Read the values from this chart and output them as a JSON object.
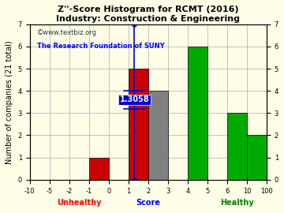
{
  "title": "Z''-Score Histogram for RCMT (2016)",
  "subtitle": "Industry: Construction & Engineering",
  "watermark1": "©www.textbiz.org",
  "watermark2": "The Research Foundation of SUNY",
  "xlabel_center": "Score",
  "xlabel_left": "Unhealthy",
  "xlabel_right": "Healthy",
  "ylabel": "Number of companies (21 total)",
  "tick_labels": [
    "-10",
    "-5",
    "-2",
    "-1",
    "0",
    "1",
    "2",
    "3",
    "4",
    "5",
    "6",
    "10",
    "100"
  ],
  "tick_positions": [
    0,
    1,
    2,
    3,
    4,
    5,
    6,
    7,
    8,
    9,
    10,
    11,
    12
  ],
  "bar_left_ticks": [
    0,
    1,
    2,
    3,
    4,
    5,
    6,
    7,
    8,
    9,
    10,
    11
  ],
  "bar_right_ticks": [
    1,
    2,
    3,
    4,
    5,
    6,
    7,
    8,
    9,
    10,
    11,
    12
  ],
  "bar_heights": [
    0,
    0,
    0,
    1,
    0,
    5,
    4,
    0,
    6,
    0,
    3,
    2
  ],
  "bar_colors": [
    "#cc0000",
    "#cc0000",
    "#cc0000",
    "#cc0000",
    "#cc0000",
    "#cc0000",
    "#808080",
    "#808080",
    "#00aa00",
    "#00aa00",
    "#00aa00",
    "#00aa00"
  ],
  "marker_tick": 5.3058,
  "marker_label": "1.3058",
  "marker_color": "#0000cc",
  "ylim": [
    0,
    7
  ],
  "yticks": [
    0,
    1,
    2,
    3,
    4,
    5,
    6,
    7
  ],
  "grid_color": "#aaaaaa",
  "background_color": "#ffffe8",
  "title_fontsize": 8,
  "label_fontsize": 7,
  "tick_fontsize": 6
}
